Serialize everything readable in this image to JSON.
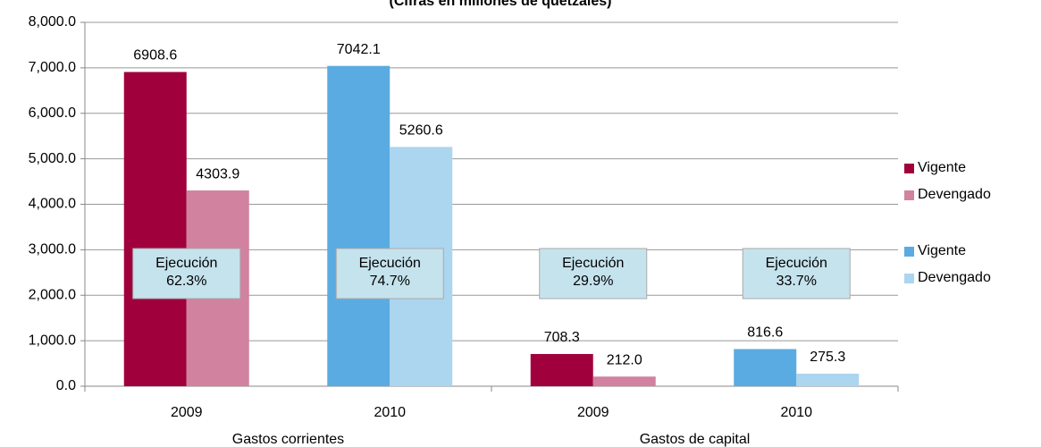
{
  "chart_data": {
    "type": "bar",
    "subtitle": "(Cifras en millones de quetzales)",
    "categories": [
      "2009",
      "2010",
      "2009",
      "2010"
    ],
    "groups": [
      "Gastos corrientes",
      "Gastos de capital"
    ],
    "series": [
      {
        "name": "Vigente",
        "color": "#a0003c",
        "values": [
          6908.6,
          null,
          708.3,
          null
        ],
        "value_labels": [
          "6908.6",
          null,
          "708.3",
          null
        ]
      },
      {
        "name": "Devengado",
        "color": "#d1829e",
        "values": [
          4303.9,
          null,
          212.0,
          null
        ],
        "value_labels": [
          "4303.9",
          null,
          "212.0",
          null
        ]
      },
      {
        "name": "Vigente",
        "color": "#5aabe1",
        "values": [
          null,
          7042.1,
          null,
          816.6
        ],
        "value_labels": [
          null,
          "7042.1",
          null,
          "816.6"
        ]
      },
      {
        "name": "Devengado",
        "color": "#acd5f0",
        "values": [
          null,
          5260.6,
          null,
          275.3
        ],
        "value_labels": [
          null,
          "5260.6",
          null,
          "275.3"
        ]
      }
    ],
    "annotations": [
      [
        "Ejecución",
        "62.3%"
      ],
      [
        "Ejecución",
        "74.7%"
      ],
      [
        "Ejecución",
        "29.9%"
      ],
      [
        "Ejecución",
        "33.7%"
      ]
    ],
    "ylim": [
      0,
      8000
    ],
    "yticks": [
      {
        "value": 0,
        "label": "0.0"
      },
      {
        "value": 1000,
        "label": "1,000.0"
      },
      {
        "value": 2000,
        "label": "2,000.0"
      },
      {
        "value": 3000,
        "label": "3,000.0"
      },
      {
        "value": 4000,
        "label": "4,000.0"
      },
      {
        "value": 5000,
        "label": "5,000.0"
      },
      {
        "value": 6000,
        "label": "6,000.0"
      },
      {
        "value": 7000,
        "label": "7,000.0"
      },
      {
        "value": 8000,
        "label": "8,000.0"
      }
    ],
    "grid": true
  }
}
